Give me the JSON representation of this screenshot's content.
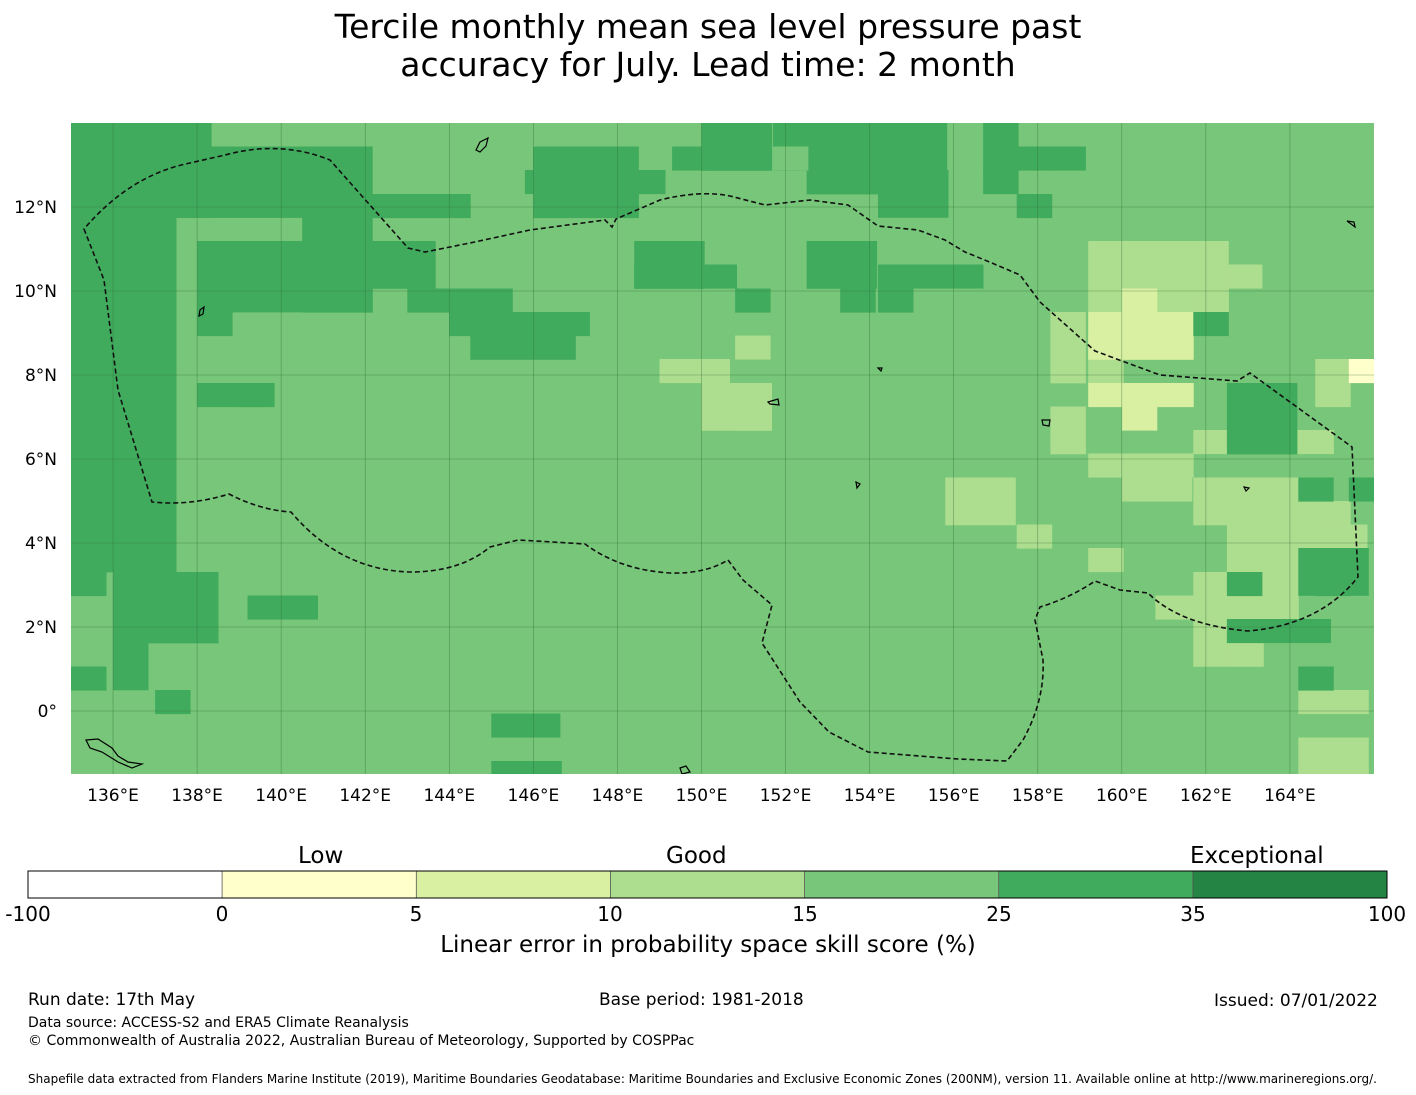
{
  "title": {
    "line1": "Tercile monthly mean sea level pressure past",
    "line2": "accuracy for July. Lead time: 2 month"
  },
  "map": {
    "lon_range": [
      135,
      166
    ],
    "lat_range": [
      -1.5,
      14
    ],
    "lon_ticks": [
      "136°E",
      "138°E",
      "140°E",
      "142°E",
      "144°E",
      "146°E",
      "148°E",
      "150°E",
      "152°E",
      "154°E",
      "156°E",
      "158°E",
      "160°E",
      "162°E",
      "164°E"
    ],
    "lat_ticks": [
      "12°N",
      "10°N",
      "8°N",
      "6°N",
      "4°N",
      "2°N",
      "0°"
    ],
    "grid": true,
    "boundary_style": "dashed",
    "colors": {
      "cat_0_5": "#ffffcc",
      "cat_5_10": "#d9f0a3",
      "cat_10_15": "#addd8e",
      "cat_15_25": "#78c679",
      "cat_25_35": "#41ab5d",
      "cat_35_100": "#238443"
    }
  },
  "colorbar": {
    "categories": [
      "Low",
      "Good",
      "Exceptional"
    ],
    "ticks": [
      "-100",
      "0",
      "5",
      "10",
      "15",
      "25",
      "35",
      "100"
    ],
    "colors": [
      "#ffffff",
      "#ffffcc",
      "#d9f0a3",
      "#addd8e",
      "#78c679",
      "#41ab5d",
      "#238443"
    ],
    "label": "Linear error in probability space skill score (%)"
  },
  "footer": {
    "run_date": "Run date: 17th May",
    "base_period": "Base period: 1981-2018",
    "issued": "Issued: 07/01/2022",
    "data_source": "Data source: ACCESS-S2 and ERA5 Climate Reanalysis",
    "copyright": "© Commonwealth of Australia 2022, Australian Bureau of Meteorology, Supported by COSPPac",
    "shapefile": "Shapefile data extracted from Flanders Marine Institute (2019), Maritime Boundaries Geodatabase: Maritime Boundaries and Exclusive Economic Zones (200NM), version 11. Available online at http://www.marineregions.org/."
  }
}
